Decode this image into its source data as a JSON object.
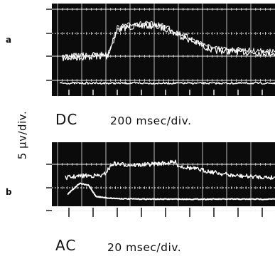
{
  "figure": {
    "vertical_scale": "5 μv/div.",
    "colors": {
      "screen": "#0b0b0b",
      "graticule": "#f2f2f2",
      "trace": "#ffffff",
      "text": "#111111",
      "background": "#ffffff"
    }
  },
  "panels": [
    {
      "label": "a",
      "coupling": "DC",
      "timebase": "200 msec/div."
    },
    {
      "label": "b",
      "coupling": "AC",
      "timebase": "20 msec/div."
    }
  ]
}
